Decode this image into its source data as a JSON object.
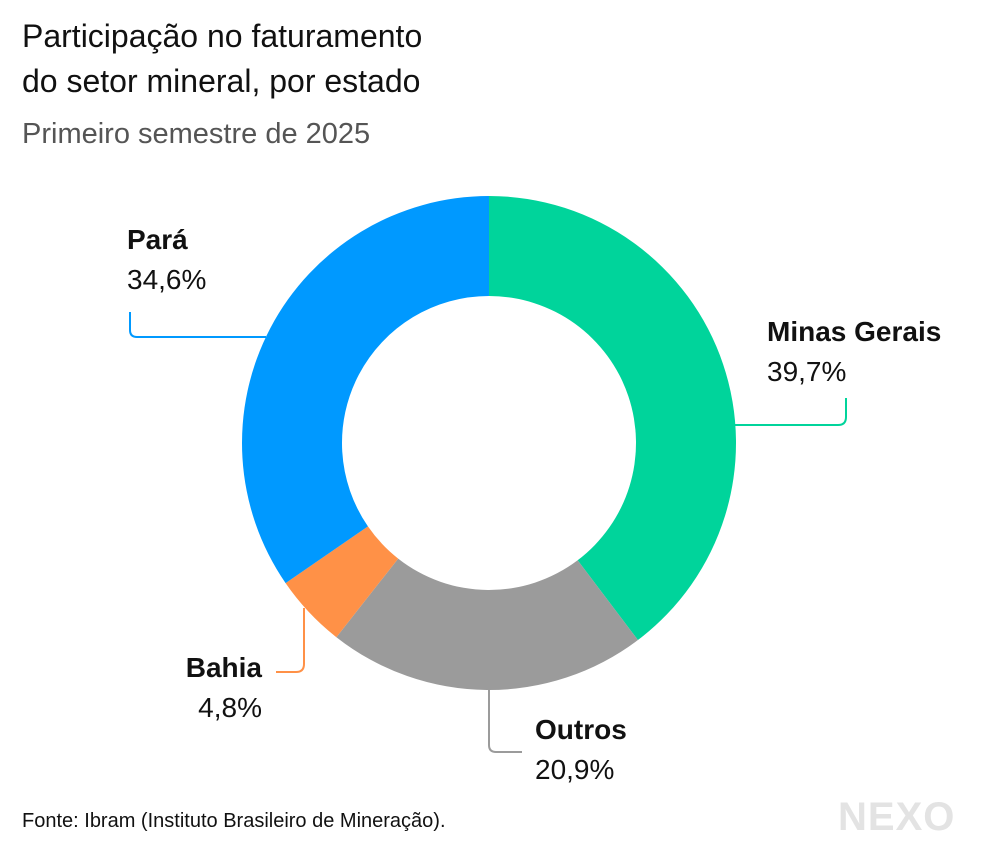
{
  "title_line1": "Participação no faturamento",
  "title_line2": "do setor mineral, por estado",
  "subtitle": "Primeiro semestre de 2025",
  "source": "Fonte: Ibram (Instituto Brasileiro de Mineração).",
  "logo": "NEXO",
  "chart_data": {
    "type": "pie",
    "variant": "donut",
    "start": "top, clockwise",
    "title": "Participação no faturamento do setor mineral, por estado",
    "subtitle": "Primeiro semestre de 2025",
    "slices": [
      {
        "label": "Minas Gerais",
        "value": 39.7,
        "display": "39,7%",
        "color": "#00d49b"
      },
      {
        "label": "Outros",
        "value": 20.9,
        "display": "20,9%",
        "color": "#9b9b9b"
      },
      {
        "label": "Bahia",
        "value": 4.8,
        "display": "4,8%",
        "color": "#ff9147"
      },
      {
        "label": "Pará",
        "value": 34.6,
        "display": "34,6%",
        "color": "#0099ff"
      }
    ]
  }
}
